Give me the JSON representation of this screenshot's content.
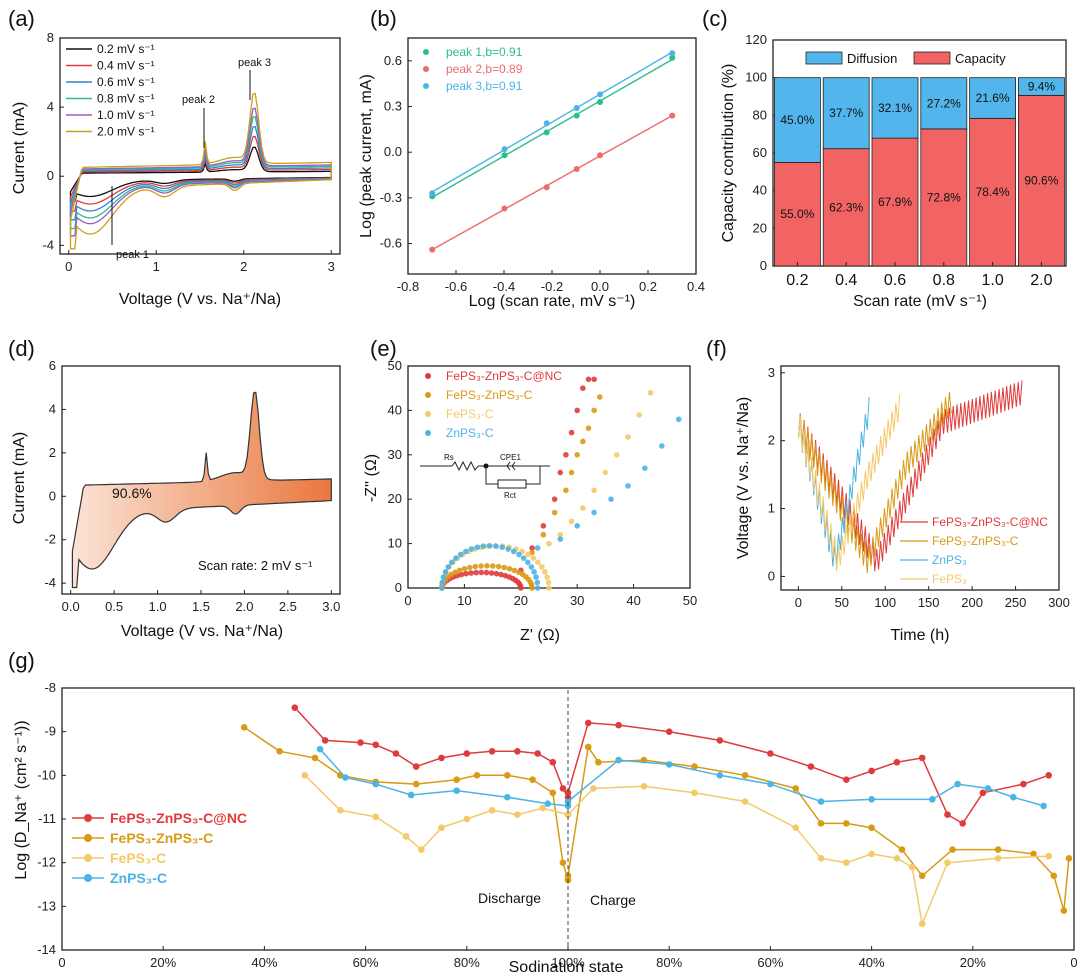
{
  "colors": {
    "red": "#e03b3b",
    "orange": "#d99a14",
    "yellow": "#f4c96a",
    "blue": "#4cb3e6",
    "green": "#2bbf8a",
    "salmon": "#ee6b6b",
    "diff": "#52b5ec",
    "cap": "#f26464",
    "gold": "#c9a21a"
  },
  "a": {
    "panel": "(a)",
    "chart_data": {
      "type": "line",
      "title": "",
      "xlabel": "Voltage (V vs. Na⁺/Na)",
      "ylabel": "Current (mA)",
      "xlim": [
        -0.1,
        3.1
      ],
      "ylim": [
        -4.5,
        8
      ],
      "xticks": [
        "0",
        "1",
        "2",
        "3"
      ],
      "yticks": [
        "-4",
        "0",
        "4",
        "8"
      ],
      "series": [
        {
          "name": "0.2 mV s⁻¹",
          "color": "#111111",
          "scale": 0.35
        },
        {
          "name": "0.4 mV s⁻¹",
          "color": "#e03b3b",
          "scale": 0.48
        },
        {
          "name": "0.6 mV s⁻¹",
          "color": "#3a7fd5",
          "scale": 0.6
        },
        {
          "name": "0.8 mV s⁻¹",
          "color": "#2bbf8a",
          "scale": 0.72
        },
        {
          "name": "1.0 mV s⁻¹",
          "color": "#9a5cc6",
          "scale": 0.82
        },
        {
          "name": "2.0 mV s⁻¹",
          "color": "#c9a21a",
          "scale": 1.0
        }
      ],
      "annotations": [
        "peak 3",
        "peak 2",
        "peak 1"
      ]
    }
  },
  "b": {
    "panel": "(b)",
    "chart_data": {
      "type": "scatter",
      "xlabel": "Log (scan rate, mV s⁻¹)",
      "ylabel": "Log (peak current, mA)",
      "xlim": [
        -0.8,
        0.4
      ],
      "ylim": [
        -0.8,
        0.75
      ],
      "xticks": [
        "-0.8",
        "-0.6",
        "-0.4",
        "-0.2",
        "0.0",
        "0.2",
        "0.4"
      ],
      "yticks": [
        "-0.6",
        "-0.3",
        "0.0",
        "0.3",
        "0.6"
      ],
      "x": [
        -0.699,
        -0.398,
        -0.222,
        -0.097,
        0.0,
        0.301
      ],
      "series": [
        {
          "name": "peak 1,b=0.91",
          "color": "#2bbf8a",
          "values": [
            -0.29,
            -0.02,
            0.13,
            0.24,
            0.33,
            0.62
          ]
        },
        {
          "name": "peak 2,b=0.89",
          "color": "#ee6b6b",
          "values": [
            -0.64,
            -0.37,
            -0.23,
            -0.11,
            -0.02,
            0.24
          ]
        },
        {
          "name": "peak 3,b=0.91",
          "color": "#4cb3e6",
          "values": [
            -0.27,
            0.02,
            0.19,
            0.29,
            0.38,
            0.65
          ]
        }
      ]
    }
  },
  "c": {
    "panel": "(c)",
    "chart_data": {
      "type": "bar",
      "xlabel": "Scan rate (mV s⁻¹)",
      "ylabel": "Capacity contribution (%)",
      "ylim": [
        0,
        120
      ],
      "yticks": [
        "0",
        "20",
        "40",
        "60",
        "80",
        "100",
        "120"
      ],
      "categories": [
        "0.2",
        "0.4",
        "0.6",
        "0.8",
        "1.0",
        "2.0"
      ],
      "series": [
        {
          "name": "Capacity",
          "color": "#f26464",
          "values": [
            55.0,
            62.3,
            67.9,
            72.8,
            78.4,
            90.6
          ],
          "labels": [
            "55.0%",
            "62.3%",
            "67.9%",
            "72.8%",
            "78.4%",
            "90.6%"
          ]
        },
        {
          "name": "Diffusion",
          "color": "#52b5ec",
          "values": [
            45.0,
            37.7,
            32.1,
            27.2,
            21.6,
            9.4
          ],
          "labels": [
            "45.0%",
            "37.7%",
            "32.1%",
            "27.2%",
            "21.6%",
            "9.4%"
          ]
        }
      ]
    }
  },
  "d": {
    "panel": "(d)",
    "chart_data": {
      "type": "area",
      "xlabel": "Voltage (V vs. Na⁺/Na)",
      "ylabel": "Current (mA)",
      "xlim": [
        -0.1,
        3.1
      ],
      "ylim": [
        -4.5,
        6
      ],
      "xticks": [
        "0.0",
        "0.5",
        "1.0",
        "1.5",
        "2.0",
        "2.5",
        "3.0"
      ],
      "yticks": [
        "-4",
        "-2",
        "0",
        "2",
        "4",
        "6"
      ],
      "annotation": "90.6%",
      "note": "Scan rate: 2 mV s⁻¹"
    }
  },
  "e": {
    "panel": "(e)",
    "chart_data": {
      "type": "scatter",
      "xlabel": "Z' (Ω)",
      "ylabel": "-Z'' (Ω)",
      "xlim": [
        0,
        50
      ],
      "ylim": [
        0,
        50
      ],
      "xticks": [
        "0",
        "10",
        "20",
        "30",
        "40",
        "50"
      ],
      "yticks": [
        "0",
        "10",
        "20",
        "30",
        "40",
        "50"
      ],
      "series": [
        {
          "name": "FePS₃-ZnPS₃-C@NC",
          "color": "#e03b3b"
        },
        {
          "name": "FePS₃-ZnPS₃-C",
          "color": "#d99a14"
        },
        {
          "name": "FePS₃-C",
          "color": "#f4c96a"
        },
        {
          "name": "ZnPS₃-C",
          "color": "#4cb3e6"
        }
      ],
      "circuit": {
        "rs": "Rs",
        "cpe": "CPE1",
        "rct": "Rct"
      }
    }
  },
  "f": {
    "panel": "(f)",
    "chart_data": {
      "type": "line",
      "xlabel": "Time (h)",
      "ylabel": "Voltage (V vs. Na⁺/Na)",
      "xlim": [
        -20,
        300
      ],
      "ylim": [
        -0.2,
        3.1
      ],
      "xticks": [
        "0",
        "50",
        "100",
        "150",
        "200",
        "250",
        "300"
      ],
      "yticks": [
        "0",
        "1",
        "2",
        "3"
      ],
      "series": [
        {
          "name": "FePS₃-ZnPS₃-C@NC",
          "color": "#e03b3b"
        },
        {
          "name": "FePS₃-ZnPS₃-C",
          "color": "#d99a14"
        },
        {
          "name": "ZnPS₃",
          "color": "#4cb3e6"
        },
        {
          "name": "FePS₃",
          "color": "#f4c96a"
        }
      ]
    }
  },
  "g": {
    "panel": "(g)",
    "chart_data": {
      "type": "line",
      "xlabel": "Sodination state",
      "ylabel": "Log (D_Na⁺ (cm² s⁻¹))",
      "ylim": [
        -14,
        -8
      ],
      "yticks": [
        "-14",
        "-13",
        "-12",
        "-11",
        "-10",
        "-9",
        "-8"
      ],
      "xticks": [
        "0",
        "20%",
        "40%",
        "60%",
        "80%",
        "100%",
        "80%",
        "60%",
        "40%",
        "20%",
        "0"
      ],
      "regions": [
        "Discharge",
        "Charge"
      ],
      "series": [
        {
          "name": "FePS₃-ZnPS₃-C@NC",
          "color": "#e03b3b",
          "d": [
            [
              46,
              -8.45
            ],
            [
              52,
              -9.2
            ],
            [
              59,
              -9.25
            ],
            [
              62,
              -9.3
            ],
            [
              66,
              -9.5
            ],
            [
              70,
              -9.8
            ],
            [
              75,
              -9.6
            ],
            [
              80,
              -9.5
            ],
            [
              85,
              -9.45
            ],
            [
              90,
              -9.45
            ],
            [
              94,
              -9.5
            ],
            [
              97,
              -9.7
            ],
            [
              99,
              -10.3
            ],
            [
              100,
              -10.5
            ]
          ],
          "c": [
            [
              100,
              -10.4
            ],
            [
              104,
              -8.8
            ],
            [
              110,
              -8.85
            ],
            [
              120,
              -9.0
            ],
            [
              130,
              -9.2
            ],
            [
              140,
              -9.5
            ],
            [
              148,
              -9.8
            ],
            [
              155,
              -10.1
            ],
            [
              160,
              -9.9
            ],
            [
              165,
              -9.7
            ],
            [
              170,
              -9.6
            ],
            [
              175,
              -10.9
            ],
            [
              178,
              -11.1
            ],
            [
              182,
              -10.4
            ],
            [
              190,
              -10.2
            ],
            [
              195,
              -10.0
            ]
          ]
        },
        {
          "name": "FePS₃-ZnPS₃-C",
          "color": "#d99a14",
          "d": [
            [
              36,
              -8.9
            ],
            [
              43,
              -9.45
            ],
            [
              50,
              -9.6
            ],
            [
              55,
              -10.0
            ],
            [
              62,
              -10.15
            ],
            [
              70,
              -10.2
            ],
            [
              78,
              -10.1
            ],
            [
              82,
              -10.0
            ],
            [
              88,
              -10.0
            ],
            [
              93,
              -10.1
            ],
            [
              97,
              -10.4
            ],
            [
              99,
              -12.0
            ],
            [
              100,
              -12.4
            ]
          ],
          "c": [
            [
              100,
              -12.3
            ],
            [
              104,
              -9.35
            ],
            [
              106,
              -9.7
            ],
            [
              115,
              -9.65
            ],
            [
              125,
              -9.8
            ],
            [
              135,
              -10.0
            ],
            [
              145,
              -10.3
            ],
            [
              150,
              -11.1
            ],
            [
              155,
              -11.1
            ],
            [
              160,
              -11.2
            ],
            [
              166,
              -11.7
            ],
            [
              170,
              -12.3
            ],
            [
              176,
              -11.7
            ],
            [
              185,
              -11.7
            ],
            [
              192,
              -11.8
            ],
            [
              196,
              -12.3
            ],
            [
              198,
              -13.1
            ],
            [
              199,
              -11.9
            ]
          ]
        },
        {
          "name": "FePS₃-C",
          "color": "#f4c96a",
          "d": [
            [
              48,
              -10.0
            ],
            [
              55,
              -10.8
            ],
            [
              62,
              -10.95
            ],
            [
              68,
              -11.4
            ],
            [
              71,
              -11.7
            ],
            [
              75,
              -11.2
            ],
            [
              80,
              -11.0
            ],
            [
              85,
              -10.8
            ],
            [
              90,
              -10.9
            ],
            [
              95,
              -10.75
            ],
            [
              100,
              -10.9
            ]
          ],
          "c": [
            [
              100,
              -10.9
            ],
            [
              105,
              -10.3
            ],
            [
              115,
              -10.25
            ],
            [
              125,
              -10.4
            ],
            [
              135,
              -10.6
            ],
            [
              145,
              -11.2
            ],
            [
              150,
              -11.9
            ],
            [
              155,
              -12.0
            ],
            [
              160,
              -11.8
            ],
            [
              165,
              -11.9
            ],
            [
              168,
              -12.1
            ],
            [
              170,
              -13.4
            ],
            [
              175,
              -12.0
            ],
            [
              185,
              -11.9
            ],
            [
              195,
              -11.85
            ]
          ]
        },
        {
          "name": "ZnPS₃-C",
          "color": "#4cb3e6",
          "d": [
            [
              51,
              -9.4
            ],
            [
              56,
              -10.05
            ],
            [
              62,
              -10.2
            ],
            [
              69,
              -10.45
            ],
            [
              78,
              -10.35
            ],
            [
              88,
              -10.5
            ],
            [
              96,
              -10.65
            ],
            [
              100,
              -10.7
            ]
          ],
          "c": [
            [
              100,
              -10.6
            ],
            [
              110,
              -9.65
            ],
            [
              120,
              -9.75
            ],
            [
              130,
              -10.0
            ],
            [
              140,
              -10.2
            ],
            [
              150,
              -10.6
            ],
            [
              160,
              -10.55
            ],
            [
              172,
              -10.55
            ],
            [
              177,
              -10.2
            ],
            [
              183,
              -10.3
            ],
            [
              188,
              -10.5
            ],
            [
              194,
              -10.7
            ]
          ]
        }
      ]
    }
  }
}
